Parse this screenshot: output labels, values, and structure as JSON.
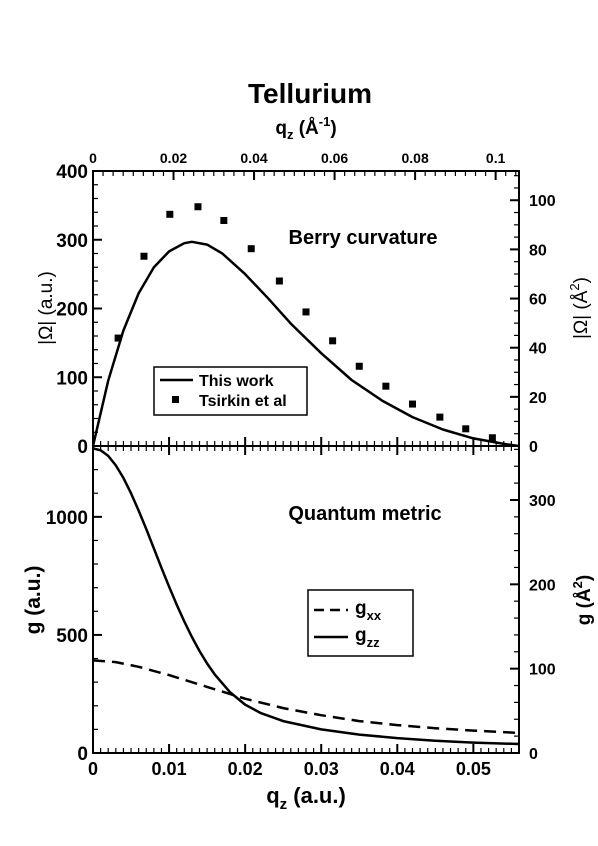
{
  "figure": {
    "title": "Tellurium"
  },
  "chart_data": [
    {
      "type": "line",
      "title": "Berry curvature",
      "top_axis": {
        "label_main": "q",
        "label_sub": "z",
        "label_unit": " (Å",
        "label_sup": "-1",
        "label_close": ")",
        "ticks": [
          "0",
          "0.02",
          "0.04",
          "0.06",
          "0.08",
          "0.1"
        ],
        "tick_values": [
          0,
          0.02,
          0.04,
          0.06,
          0.08,
          0.1
        ],
        "range": [
          0,
          0.1058
        ]
      },
      "x_range": [
        0,
        0.056
      ],
      "left_axis": {
        "label": "|Ω| (a.u.)",
        "range": [
          0,
          400
        ],
        "ticks": [
          "0",
          "100",
          "200",
          "300",
          "400"
        ],
        "tick_values": [
          0,
          100,
          200,
          300,
          400
        ]
      },
      "right_axis": {
        "label_main": "|Ω| (Å",
        "label_sup": "2",
        "label_close": ")",
        "range": [
          0,
          111.9
        ],
        "ticks": [
          "0",
          "20",
          "40",
          "60",
          "80",
          "100"
        ],
        "tick_values": [
          0,
          20,
          40,
          60,
          80,
          100
        ]
      },
      "legend": {
        "placement": "lower-center",
        "entries": [
          "This work",
          "Tsirkin et al"
        ]
      },
      "series": [
        {
          "name": "This work",
          "style": "solid",
          "x": [
            0,
            0.002,
            0.004,
            0.006,
            0.008,
            0.01,
            0.012,
            0.013,
            0.015,
            0.017,
            0.02,
            0.023,
            0.026,
            0.03,
            0.034,
            0.038,
            0.042,
            0.046,
            0.05,
            0.054,
            0.056
          ],
          "y": [
            0,
            95,
            168,
            222,
            260,
            283,
            295,
            297,
            293,
            280,
            250,
            215,
            178,
            135,
            96,
            66,
            42,
            24,
            11,
            3,
            0
          ]
        },
        {
          "name": "Tsirkin et al",
          "style": "markers",
          "x": [
            0.0033,
            0.0067,
            0.0101,
            0.0138,
            0.0172,
            0.0208,
            0.0245,
            0.028,
            0.0315,
            0.035,
            0.0385,
            0.042,
            0.0456,
            0.049,
            0.0525
          ],
          "y": [
            157,
            276,
            337,
            348,
            328,
            287,
            240,
            195,
            153,
            116,
            87,
            61,
            42,
            25,
            12
          ]
        }
      ]
    },
    {
      "type": "line",
      "title": "Quantum metric",
      "x_axis": {
        "label_main": "q",
        "label_sub": "z",
        "label_unit": " (a.u.)",
        "range": [
          0,
          0.056
        ],
        "ticks": [
          "0",
          "0.01",
          "0.02",
          "0.03",
          "0.04",
          "0.05"
        ],
        "tick_values": [
          0,
          0.01,
          0.02,
          0.03,
          0.04,
          0.05
        ]
      },
      "left_axis": {
        "label": "g (a.u.)",
        "range": [
          0,
          1300
        ],
        "ticks": [
          "0",
          "500",
          "1000"
        ],
        "tick_values": [
          0,
          500,
          1000
        ]
      },
      "right_axis": {
        "label_main": "g (Å",
        "label_sup": "2",
        "label_close": ")",
        "range": [
          0,
          364
        ],
        "ticks": [
          "0",
          "100",
          "200",
          "300"
        ],
        "tick_values": [
          0,
          100,
          200,
          300
        ]
      },
      "legend": {
        "placement": "center-right",
        "entries": [
          {
            "main": "g",
            "sub": "xx"
          },
          {
            "main": "g",
            "sub": "zz"
          }
        ]
      },
      "series": [
        {
          "name": "gxx",
          "style": "dashed",
          "x": [
            0,
            0.003,
            0.006,
            0.01,
            0.015,
            0.02,
            0.025,
            0.03,
            0.035,
            0.04,
            0.045,
            0.05,
            0.056
          ],
          "y": [
            392,
            385,
            365,
            330,
            280,
            230,
            190,
            160,
            135,
            118,
            105,
            95,
            85
          ]
        },
        {
          "name": "gzz",
          "style": "solid",
          "x": [
            0,
            0.001,
            0.002,
            0.003,
            0.004,
            0.005,
            0.006,
            0.007,
            0.008,
            0.009,
            0.01,
            0.011,
            0.012,
            0.013,
            0.014,
            0.015,
            0.016,
            0.018,
            0.02,
            0.022,
            0.025,
            0.03,
            0.035,
            0.04,
            0.045,
            0.05,
            0.056
          ],
          "y": [
            1290,
            1282,
            1258,
            1218,
            1165,
            1100,
            1027,
            948,
            866,
            784,
            704,
            628,
            557,
            491,
            432,
            379,
            333,
            258,
            205,
            170,
            135,
            100,
            78,
            63,
            52,
            44,
            38
          ]
        }
      ]
    }
  ]
}
